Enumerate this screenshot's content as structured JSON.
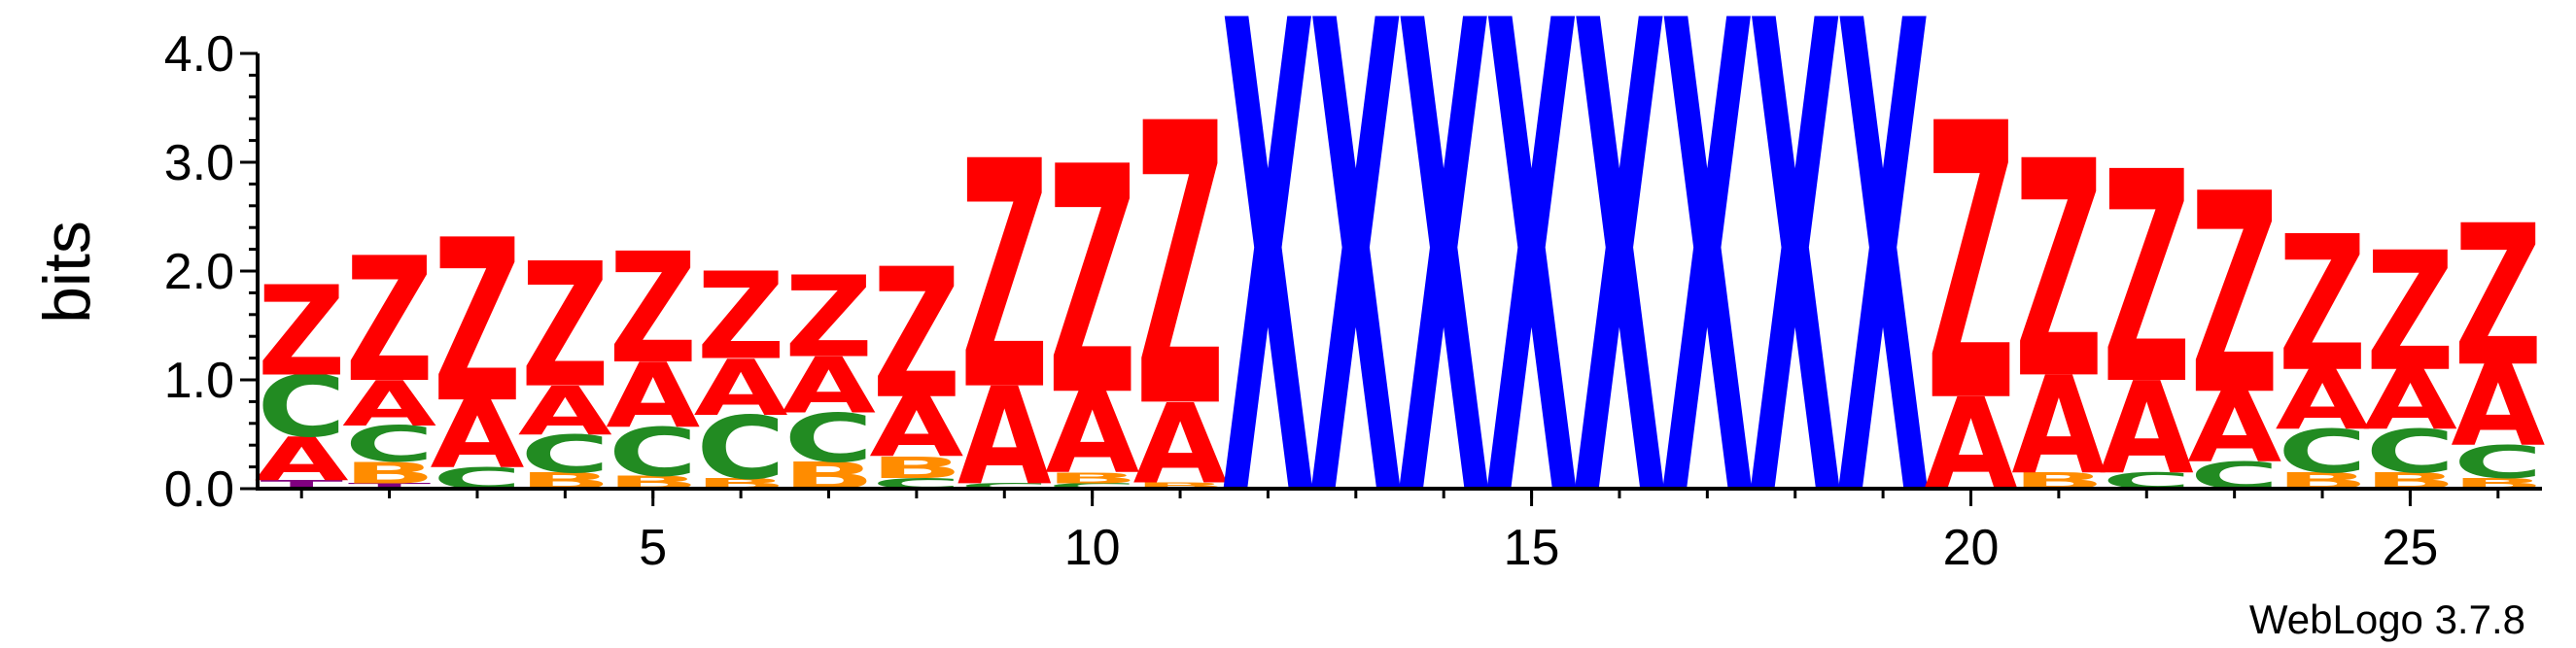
{
  "chart_data": {
    "type": "sequence-logo",
    "ylabel": "bits",
    "ylim": [
      0,
      4.0
    ],
    "yticks": [
      "0.0",
      "1.0",
      "2.0",
      "3.0",
      "4.0"
    ],
    "xticks": [
      5,
      10,
      15,
      20,
      25
    ],
    "x_range": [
      1,
      26
    ],
    "credit": "WebLogo 3.7.8",
    "colors": {
      "A": "#ff0000",
      "Z": "#ff0000",
      "C": "#228b22",
      "B": "#ff8c00",
      "T": "#800080",
      "X": "#0000ff"
    },
    "positions": [
      {
        "pos": 1,
        "letters": [
          [
            "T",
            0.08
          ],
          [
            "A",
            0.4
          ],
          [
            "C",
            0.57
          ],
          [
            "Z",
            0.83
          ]
        ]
      },
      {
        "pos": 2,
        "letters": [
          [
            "T",
            0.05
          ],
          [
            "B",
            0.2
          ],
          [
            "C",
            0.33
          ],
          [
            "A",
            0.42
          ],
          [
            "Z",
            1.15
          ]
        ]
      },
      {
        "pos": 3,
        "letters": [
          [
            "C",
            0.2
          ],
          [
            "A",
            0.62
          ],
          [
            "Z",
            1.5
          ]
        ]
      },
      {
        "pos": 4,
        "letters": [
          [
            "B",
            0.15
          ],
          [
            "C",
            0.35
          ],
          [
            "A",
            0.45
          ],
          [
            "Z",
            1.15
          ]
        ]
      },
      {
        "pos": 5,
        "letters": [
          [
            "B",
            0.12
          ],
          [
            "C",
            0.45
          ],
          [
            "A",
            0.6
          ],
          [
            "Z",
            1.02
          ]
        ]
      },
      {
        "pos": 6,
        "letters": [
          [
            "B",
            0.1
          ],
          [
            "C",
            0.58
          ],
          [
            "A",
            0.52
          ],
          [
            "Z",
            0.8
          ]
        ]
      },
      {
        "pos": 7,
        "letters": [
          [
            "B",
            0.25
          ],
          [
            "C",
            0.45
          ],
          [
            "A",
            0.52
          ],
          [
            "Z",
            0.75
          ]
        ]
      },
      {
        "pos": 8,
        "letters": [
          [
            "C",
            0.1
          ],
          [
            "B",
            0.2
          ],
          [
            "A",
            0.55
          ],
          [
            "Z",
            1.2
          ]
        ]
      },
      {
        "pos": 9,
        "letters": [
          [
            "C",
            0.05
          ],
          [
            "A",
            0.9
          ],
          [
            "Z",
            2.1
          ]
        ]
      },
      {
        "pos": 10,
        "letters": [
          [
            "C",
            0.05
          ],
          [
            "B",
            0.1
          ],
          [
            "A",
            0.75
          ],
          [
            "Z",
            2.1
          ]
        ]
      },
      {
        "pos": 11,
        "letters": [
          [
            "B",
            0.06
          ],
          [
            "A",
            0.74
          ],
          [
            "Z",
            2.6
          ]
        ]
      },
      {
        "pos": 12,
        "letters": [
          [
            "X",
            4.35
          ]
        ]
      },
      {
        "pos": 13,
        "letters": [
          [
            "X",
            4.35
          ]
        ]
      },
      {
        "pos": 14,
        "letters": [
          [
            "X",
            4.35
          ]
        ]
      },
      {
        "pos": 15,
        "letters": [
          [
            "X",
            4.35
          ]
        ]
      },
      {
        "pos": 16,
        "letters": [
          [
            "X",
            4.35
          ]
        ]
      },
      {
        "pos": 17,
        "letters": [
          [
            "X",
            4.35
          ]
        ]
      },
      {
        "pos": 18,
        "letters": [
          [
            "X",
            4.35
          ]
        ]
      },
      {
        "pos": 19,
        "letters": [
          [
            "X",
            4.35
          ]
        ]
      },
      {
        "pos": 20,
        "letters": [
          [
            "A",
            0.85
          ],
          [
            "Z",
            2.55
          ]
        ]
      },
      {
        "pos": 21,
        "letters": [
          [
            "B",
            0.15
          ],
          [
            "A",
            0.9
          ],
          [
            "Z",
            2.0
          ]
        ]
      },
      {
        "pos": 22,
        "letters": [
          [
            "C",
            0.15
          ],
          [
            "A",
            0.85
          ],
          [
            "Z",
            1.95
          ]
        ]
      },
      {
        "pos": 23,
        "letters": [
          [
            "C",
            0.25
          ],
          [
            "A",
            0.65
          ],
          [
            "Z",
            1.85
          ]
        ]
      },
      {
        "pos": 24,
        "letters": [
          [
            "B",
            0.15
          ],
          [
            "C",
            0.4
          ],
          [
            "A",
            0.55
          ],
          [
            "Z",
            1.25
          ]
        ]
      },
      {
        "pos": 25,
        "letters": [
          [
            "B",
            0.15
          ],
          [
            "C",
            0.4
          ],
          [
            "A",
            0.55
          ],
          [
            "Z",
            1.1
          ]
        ]
      },
      {
        "pos": 26,
        "letters": [
          [
            "B",
            0.1
          ],
          [
            "C",
            0.3
          ],
          [
            "A",
            0.75
          ],
          [
            "Z",
            1.3
          ]
        ]
      }
    ]
  }
}
